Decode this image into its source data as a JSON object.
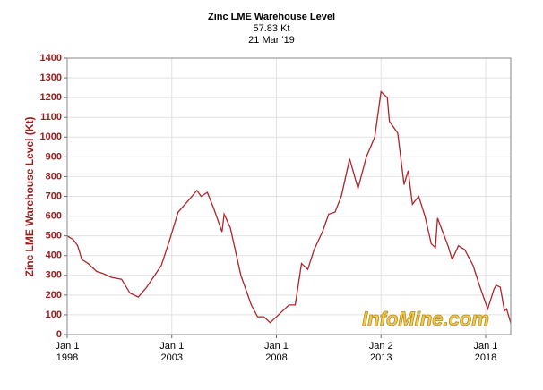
{
  "chart_data": {
    "type": "line",
    "title": "Zinc LME Warehouse Level",
    "subtitle": "57.83 Kt",
    "date": "21 Mar '19",
    "y_label": "Zinc LME Warehouse Level (Kt)",
    "watermark": "InfoMine.com",
    "grid": true,
    "xlim": [
      1998,
      2019.2
    ],
    "ylim": [
      0,
      1400
    ],
    "xticks": [
      {
        "value": 1998,
        "label": [
          "Jan 1",
          "1998"
        ]
      },
      {
        "value": 2003,
        "label": [
          "Jan 1",
          "2003"
        ]
      },
      {
        "value": 2008,
        "label": [
          "Jan 1",
          "2008"
        ]
      },
      {
        "value": 2013,
        "label": [
          "Jan 2",
          "2013"
        ]
      },
      {
        "value": 2018,
        "label": [
          "Jan 1",
          "2018"
        ]
      }
    ],
    "yticks": [
      0,
      100,
      200,
      300,
      400,
      500,
      600,
      700,
      800,
      900,
      1000,
      1100,
      1200,
      1300,
      1400
    ],
    "x": [
      1998.0,
      1998.3,
      1998.5,
      1998.7,
      1999.0,
      1999.4,
      1999.7,
      2000.1,
      2000.6,
      2001.0,
      2001.4,
      2001.8,
      2002.5,
      2002.9,
      2003.3,
      2003.8,
      2004.2,
      2004.4,
      2004.7,
      2005.0,
      2005.4,
      2005.5,
      2005.8,
      2006.3,
      2006.8,
      2007.1,
      2007.4,
      2007.7,
      2008.1,
      2008.6,
      2008.9,
      2009.2,
      2009.5,
      2009.8,
      2010.2,
      2010.5,
      2010.8,
      2011.1,
      2011.5,
      2011.9,
      2012.3,
      2012.7,
      2013.0,
      2013.3,
      2013.4,
      2013.8,
      2014.1,
      2014.3,
      2014.5,
      2014.8,
      2015.1,
      2015.4,
      2015.6,
      2015.7,
      2016.2,
      2016.4,
      2016.7,
      2017.0,
      2017.4,
      2017.7,
      2018.1,
      2018.4,
      2018.5,
      2018.7,
      2018.9,
      2019.0,
      2019.2
    ],
    "series": [
      {
        "name": "Zinc LME Warehouse Level",
        "color": "#b0232a",
        "values": [
          500,
          480,
          450,
          380,
          360,
          320,
          310,
          290,
          280,
          210,
          190,
          240,
          350,
          480,
          620,
          680,
          730,
          700,
          720,
          640,
          520,
          610,
          540,
          300,
          150,
          90,
          90,
          60,
          100,
          150,
          150,
          360,
          330,
          430,
          520,
          610,
          620,
          700,
          890,
          740,
          900,
          1000,
          1230,
          1200,
          1080,
          1020,
          760,
          830,
          660,
          700,
          600,
          460,
          440,
          590,
          450,
          380,
          450,
          430,
          350,
          250,
          130,
          230,
          250,
          240,
          120,
          130,
          57.83
        ]
      }
    ]
  }
}
